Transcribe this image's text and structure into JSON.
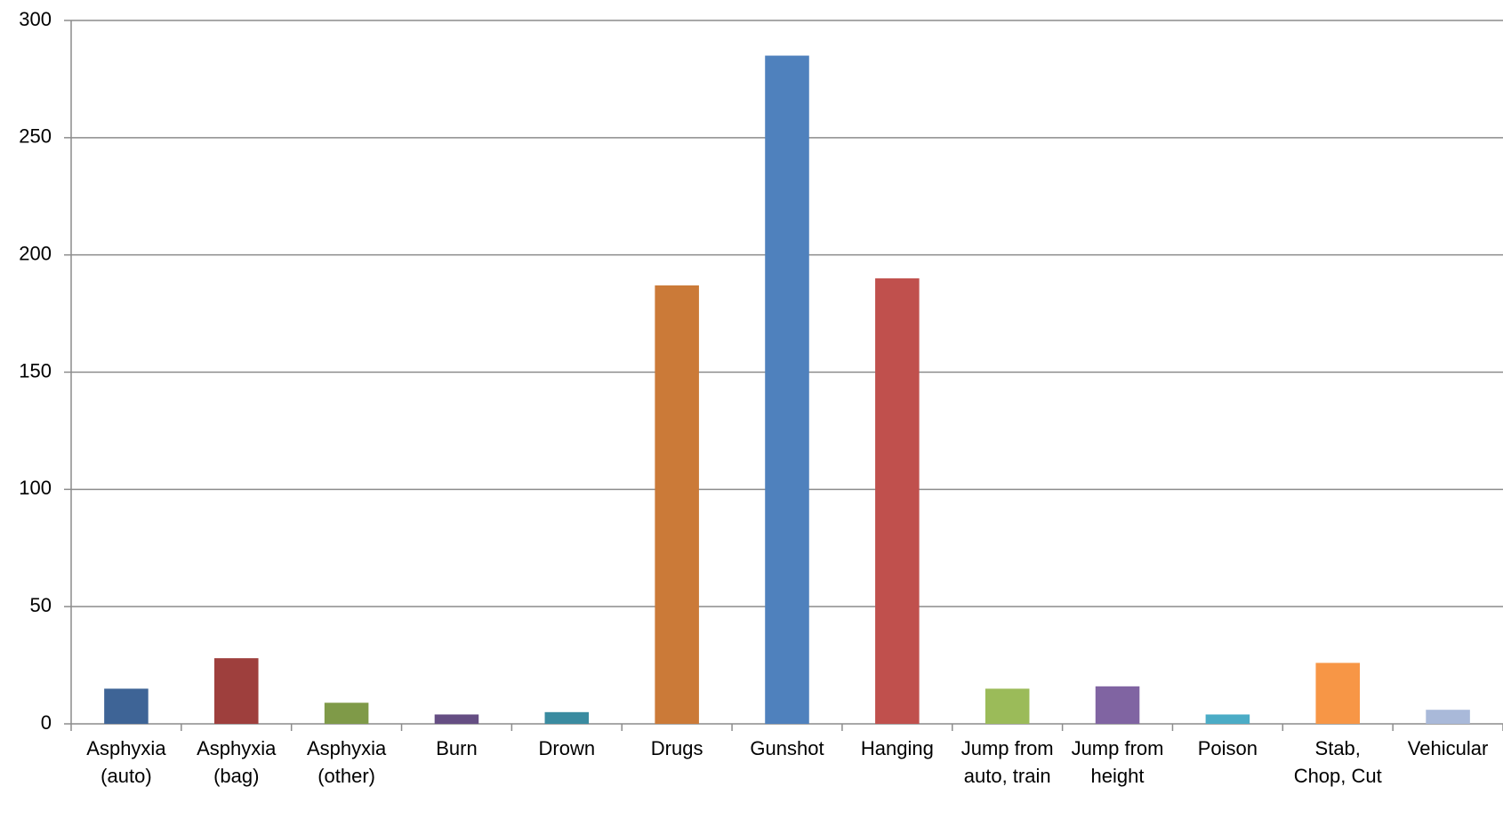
{
  "chart_data": {
    "type": "bar",
    "categories": [
      "Asphyxia (auto)",
      "Asphyxia (bag)",
      "Asphyxia (other)",
      "Burn",
      "Drown",
      "Drugs",
      "Gunshot",
      "Hanging",
      "Jump from auto, train",
      "Jump from height",
      "Poison",
      "Stab, Chop, Cut",
      "Vehicular"
    ],
    "values": [
      15,
      28,
      9,
      4,
      5,
      187,
      285,
      190,
      15,
      16,
      4,
      26,
      6
    ],
    "colors": [
      "#3e6496",
      "#9e3f3d",
      "#7f9a48",
      "#654e83",
      "#3a8ba0",
      "#cb7a38",
      "#4f81bd",
      "#c0504d",
      "#9bbb59",
      "#8064a2",
      "#4bacc6",
      "#f79646",
      "#a9b9d9"
    ],
    "ylim": [
      0,
      300
    ],
    "yticks": [
      0,
      50,
      100,
      150,
      200,
      250,
      300
    ],
    "grid": true
  }
}
